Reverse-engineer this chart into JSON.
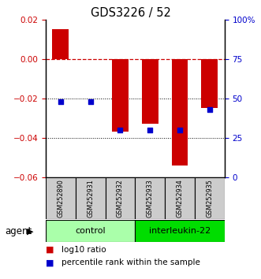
{
  "title": "GDS3226 / 52",
  "samples": [
    "GSM252890",
    "GSM252931",
    "GSM252932",
    "GSM252933",
    "GSM252934",
    "GSM252935"
  ],
  "log10_ratio": [
    0.015,
    0.0,
    -0.037,
    -0.033,
    -0.054,
    -0.025
  ],
  "percentile_rank": [
    48,
    48,
    30,
    30,
    30,
    43
  ],
  "ylim_left": [
    -0.06,
    0.02
  ],
  "yticks_left": [
    -0.06,
    -0.04,
    -0.02,
    0.0,
    0.02
  ],
  "ylim_right": [
    0,
    100
  ],
  "yticks_right": [
    0,
    25,
    50,
    75,
    100
  ],
  "yticklabels_right": [
    "0",
    "25",
    "50",
    "75",
    "100%"
  ],
  "groups": [
    {
      "label": "control",
      "indices": [
        0,
        1,
        2
      ],
      "color": "#AAFFAA"
    },
    {
      "label": "interleukin-22",
      "indices": [
        3,
        4,
        5
      ],
      "color": "#00DD00"
    }
  ],
  "bar_color": "#CC0000",
  "point_color": "#0000CC",
  "dashed_line_color": "#CC0000",
  "dotted_line_color": "#000000",
  "legend_bar_label": "log10 ratio",
  "legend_point_label": "percentile rank within the sample",
  "agent_label": "agent",
  "figsize": [
    3.31,
    3.54
  ],
  "dpi": 100
}
